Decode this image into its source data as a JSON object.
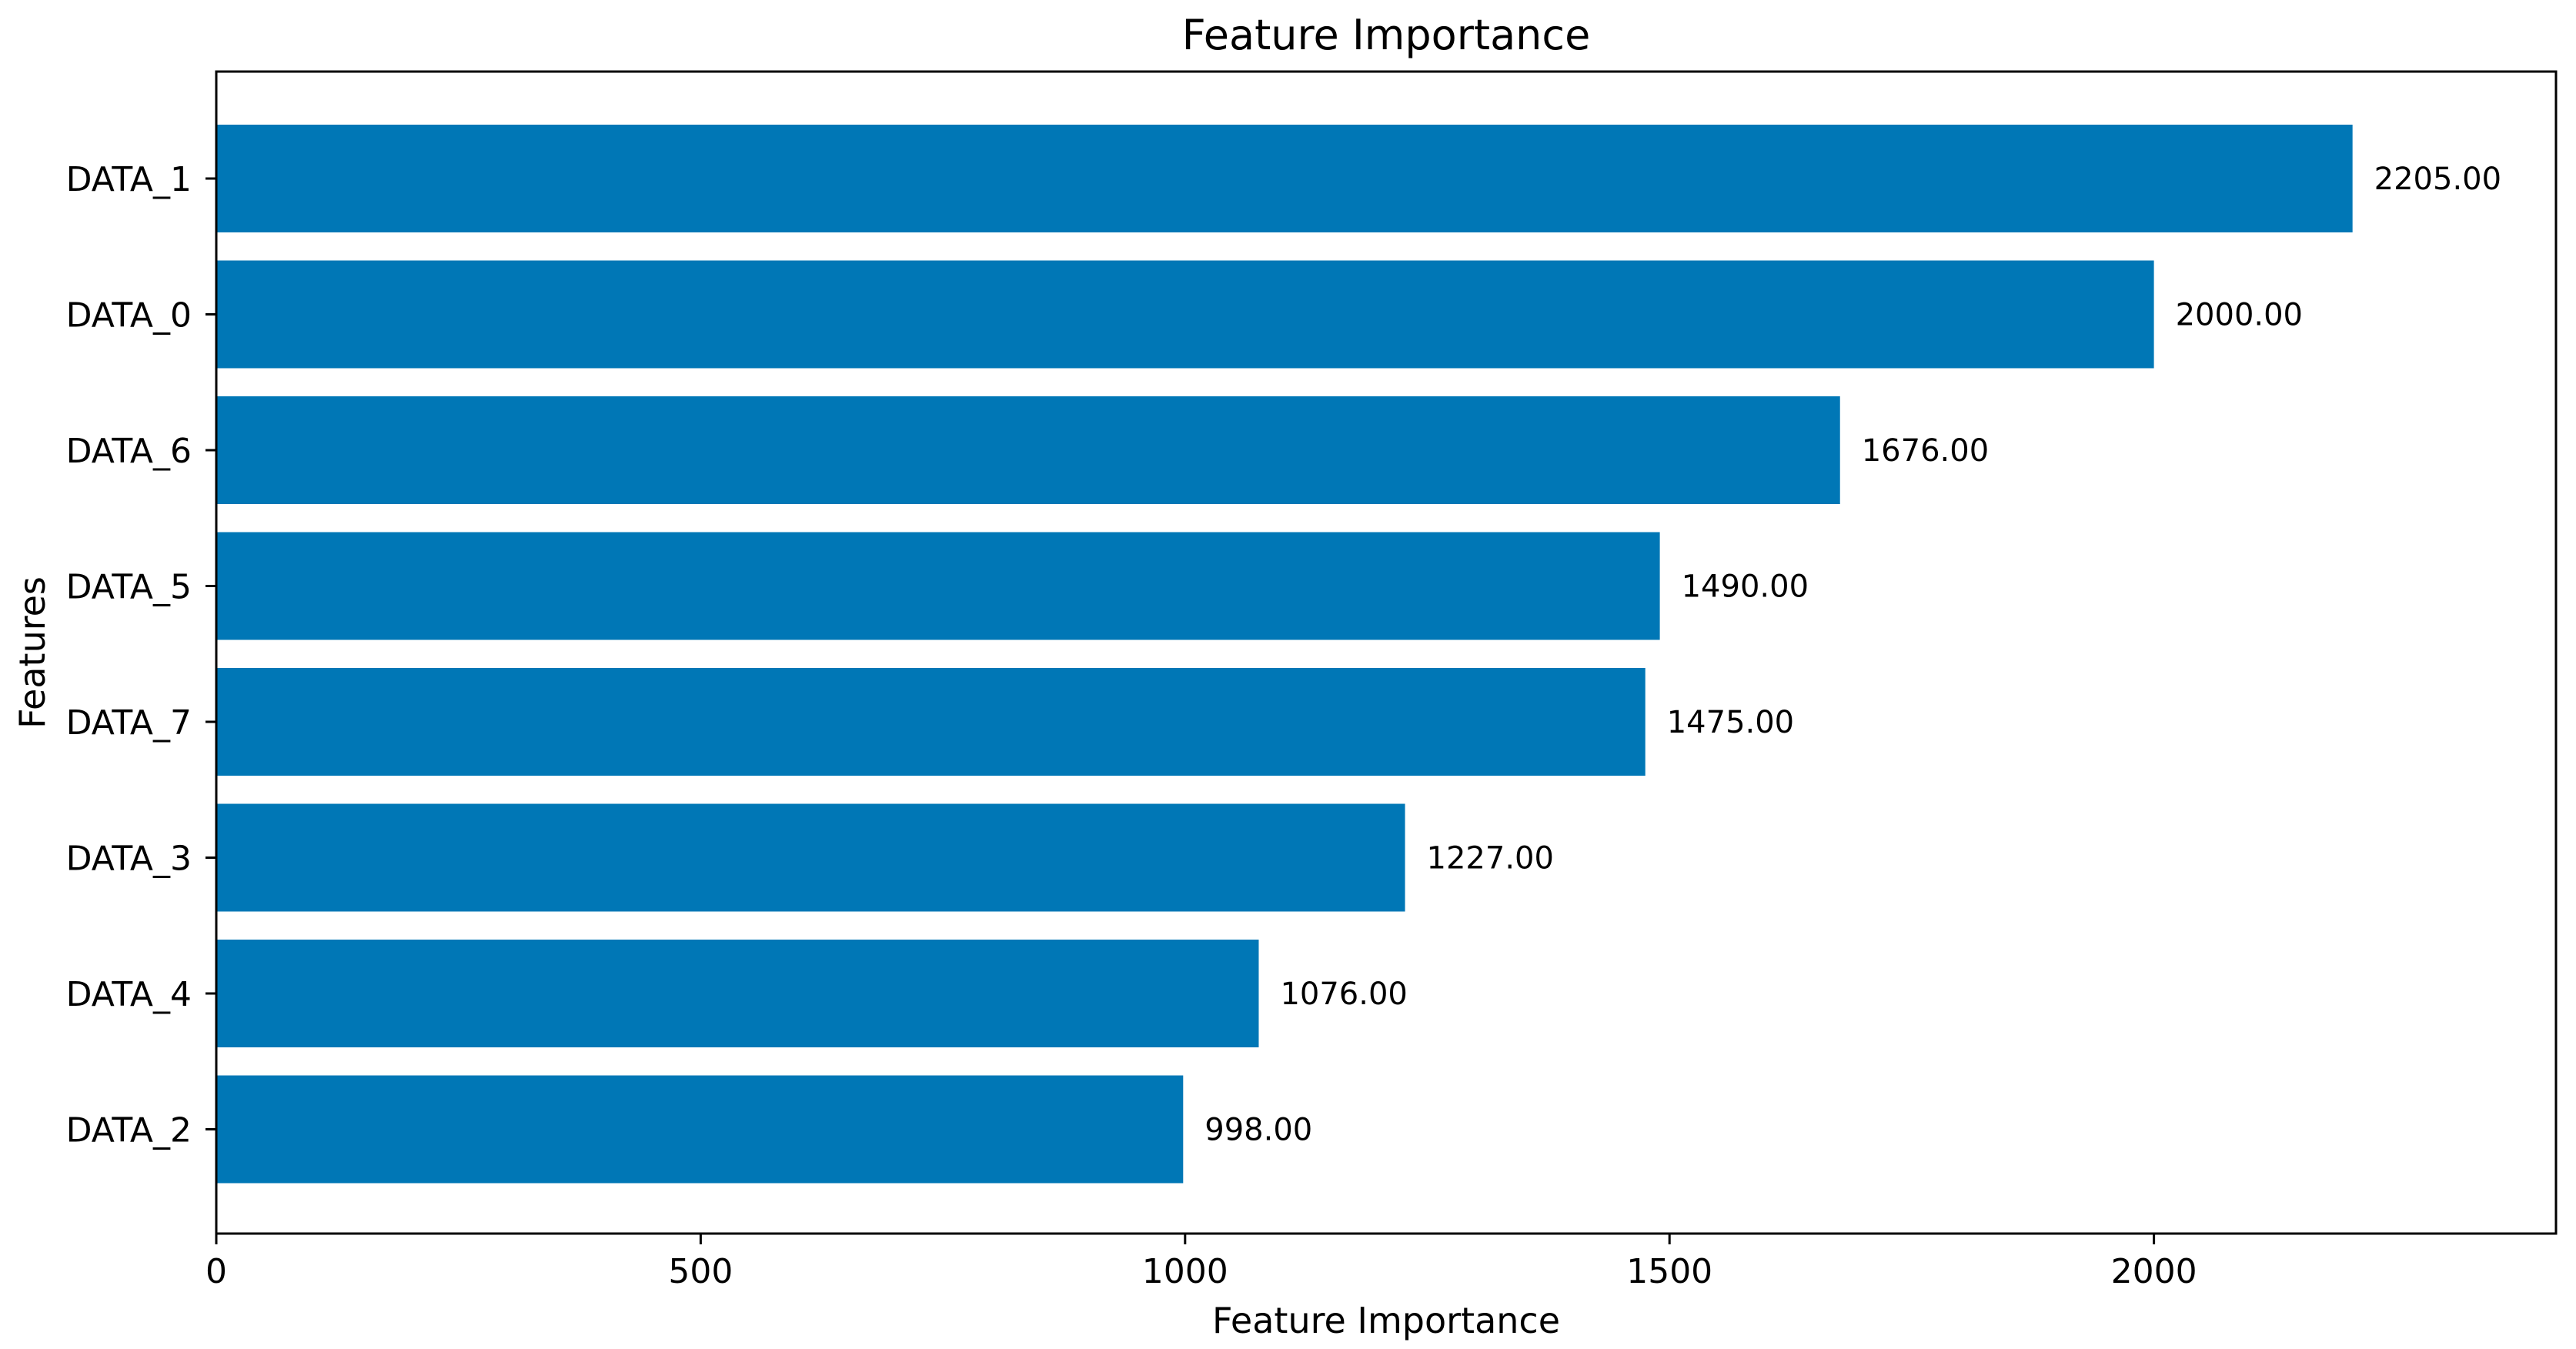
{
  "chart_data": {
    "type": "bar",
    "orientation": "horizontal",
    "title": "Feature Importance",
    "xlabel": "Feature Importance",
    "ylabel": "Features",
    "categories": [
      "DATA_1",
      "DATA_0",
      "DATA_6",
      "DATA_5",
      "DATA_7",
      "DATA_3",
      "DATA_4",
      "DATA_2"
    ],
    "values": [
      2205,
      2000,
      1676,
      1490,
      1475,
      1227,
      1076,
      998
    ],
    "data_labels": [
      "2205.00",
      "2000.00",
      "1676.00",
      "1490.00",
      "1475.00",
      "1227.00",
      "1076.00",
      "998.00"
    ],
    "xlim": [
      0,
      2415
    ],
    "xticks": [
      0,
      500,
      1000,
      1500,
      2000
    ],
    "xtick_labels": [
      "0",
      "500",
      "1000",
      "1500",
      "2000"
    ],
    "grid": false,
    "legend": "none",
    "bar_color": "#0077b6"
  }
}
